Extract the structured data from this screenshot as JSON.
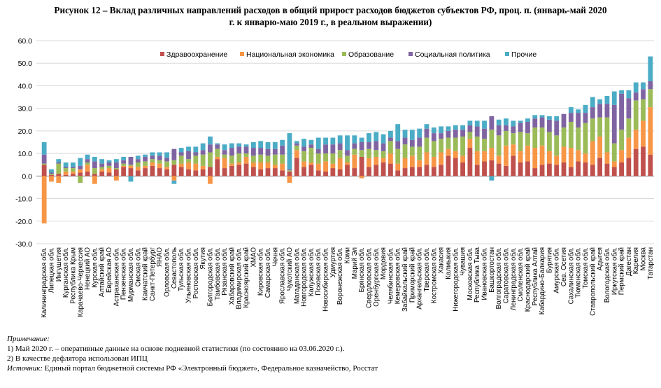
{
  "title": {
    "line1": "Рисунок 12 – Вклад различных направлений расходов в общий прирост расходов бюджетов субъектов РФ, проц. п. (январь-май 2020",
    "line2": "г. к январю-маю 2019 г., в реальном выражении)"
  },
  "notes": {
    "heading": "Примечание:",
    "line1": "1) Май 2020 г. – оперативные данные на основе подневной статистики (по состоянию на 03.06.2020 г.).",
    "line2": "2) В качестве дефлятора использован ИПЦ",
    "source_label": "Источник:",
    "source_text": " Единый портал бюджетной системы РФ «Электронный бюджет», Федеральное казначейство, Росстат"
  },
  "colors": {
    "Здравоохранение": "#c0504d",
    "Национальная экономика": "#f79646",
    "Образование": "#9bbb59",
    "Социальная политика": "#8064a2",
    "Прочие": "#4bacc6"
  },
  "chart_data": {
    "type": "bar",
    "stacked": true,
    "ylim": [
      -30,
      60
    ],
    "yticks": [
      "-30.0",
      "-20.0",
      "-10.0",
      "0.0",
      "10.0",
      "20.0",
      "30.0",
      "40.0",
      "50.0",
      "60.0"
    ],
    "grid": true,
    "legend_position": "top",
    "categories": [
      "Калининградская обл.",
      "Липецкая обл.",
      "Ингушетия",
      "Курганская обл.",
      "Республика Крым",
      "Карачаево-Черкессия",
      "Ненецкий АО",
      "Курская обл.",
      "Алтайский край",
      "Еврейская АО",
      "Астраханская обл.",
      "Пензенская обл.",
      "Мурманская обл.",
      "Омская обл.",
      "Камчатский край",
      "Санкт-Петербург",
      "ЯНАО",
      "Орловская обл.",
      "Севастополь",
      "Тульская обл.",
      "Ульяновская обл.",
      "Ростовская обл.",
      "Якутия",
      "Белгородская обл.",
      "Тамбовская обл.",
      "Рязанская обл.",
      "Хабаровский край",
      "Владимирская обл.",
      "Красноярский край",
      "ХМАО",
      "Кировская обл.",
      "Самарская обл.",
      "Чечня",
      "Ярославская обл.",
      "Чукотский АО",
      "Магаданская обл.",
      "Новгородская обл.",
      "Калужская обл.",
      "Псковская обл.",
      "Новосибирская обл.",
      "Удмуртия",
      "Воронежская обл.",
      "Коми",
      "Марий Эл",
      "Брянская обл.",
      "Свердловская обл.",
      "Оренбургская обл.",
      "Мордовия",
      "Челябинская обл.",
      "Кемеровская обл.",
      "Забайкальский край",
      "Приморский край",
      "Архангельская обл.",
      "Тверская обл.",
      "Костромская обл.",
      "Хакасия",
      "Калмыкия",
      "Нижегородская обл.",
      "Чувашия",
      "Московская обл.",
      "Республика Тыва",
      "Ивановская обл.",
      "Башкортостан",
      "Волгоградская обл.",
      "Саратовская обл.",
      "Ленинградская обл.",
      "Смоленская обл.",
      "Краснодарский край",
      "Республика Алтай",
      "Кабардино-Балкария",
      "Бурятия",
      "Амурская обл.",
      "Сев. Осетия",
      "Сахалинская обл.",
      "Тюменская обл.",
      "Томская обл.",
      "Ставропольский край",
      "Адыгея",
      "Вологодская обл.",
      "Иркутская обл.",
      "Пермский край",
      "Дагестан",
      "Карелия",
      "Москва",
      "Татарстан"
    ],
    "series": [
      {
        "name": "Здравоохранение",
        "values": [
          5,
          0.5,
          1,
          0.5,
          1,
          1.5,
          2,
          1,
          2,
          1.5,
          3,
          4,
          3.5,
          2.5,
          3.5,
          4.5,
          3.5,
          3,
          5,
          4,
          3,
          2.5,
          3,
          4,
          7.5,
          3.5,
          4.5,
          5,
          5.5,
          4,
          3,
          3.5,
          3.5,
          2.5,
          2,
          8,
          4,
          5,
          2.5,
          2,
          3.5,
          3,
          5,
          3.5,
          8.5,
          4,
          5,
          6,
          5.5,
          2.5,
          3.5,
          4,
          4,
          5,
          4,
          5,
          9,
          8,
          6,
          12.5,
          5,
          6.5,
          7,
          5.5,
          4.5,
          9,
          6,
          6.5,
          3.5,
          5,
          5.5,
          5,
          6,
          4,
          6.5,
          6,
          5,
          8,
          5.5,
          4,
          6,
          8,
          12,
          13,
          9.5
        ]
      },
      {
        "name": "Национальная экономика",
        "values": [
          -21,
          -2.5,
          -3,
          1.5,
          1,
          1.5,
          3,
          -3.5,
          1,
          2,
          -2,
          0.5,
          1,
          1.5,
          1,
          1.5,
          2,
          1,
          -2,
          1.5,
          3,
          3,
          1.5,
          -3.5,
          1,
          4.5,
          1,
          1,
          3,
          2,
          3,
          2.5,
          1.5,
          3,
          -3,
          3.5,
          2.5,
          1,
          3,
          4.5,
          2,
          5,
          1,
          6,
          -1,
          4,
          3.5,
          2,
          4.5,
          3,
          4.5,
          5,
          3,
          5.5,
          4.5,
          5.5,
          3,
          3,
          3,
          4,
          6,
          4.5,
          5.5,
          3.5,
          9,
          5,
          5,
          7,
          9,
          8.5,
          5.5,
          4,
          7,
          8.5,
          5,
          4,
          10.5,
          9.5,
          5,
          2.5,
          5.5,
          9,
          8.5,
          11.5,
          21
        ]
      },
      {
        "name": "Образование",
        "values": [
          0.5,
          0.5,
          4.5,
          1.5,
          1.5,
          -3,
          1,
          2.5,
          1,
          1,
          0.5,
          1,
          0.5,
          2,
          2,
          1.5,
          1.5,
          2.5,
          2,
          3.5,
          1.5,
          3.5,
          5,
          6.5,
          3.5,
          1.5,
          3.5,
          4,
          1.5,
          3,
          3.5,
          3,
          4.5,
          4,
          0.5,
          2,
          4.5,
          6.5,
          4.5,
          3.5,
          4.5,
          3.5,
          3,
          2.5,
          3,
          4,
          3,
          3,
          5.5,
          6.5,
          6,
          4,
          6,
          6.5,
          7,
          6,
          5,
          6,
          8.5,
          3,
          6.5,
          5.5,
          8,
          9,
          6.5,
          5,
          8.5,
          5.5,
          9,
          8,
          8.5,
          9,
          8.5,
          11.5,
          10,
          13.5,
          10,
          8.5,
          15.5,
          8,
          9,
          8.5,
          13,
          9.5,
          8
        ]
      },
      {
        "name": "Социальная политика",
        "values": [
          4,
          0.5,
          0.5,
          0.5,
          0.5,
          1.5,
          1.5,
          3,
          1.5,
          1.5,
          2.5,
          1.5,
          3.5,
          1.5,
          2,
          1.5,
          2,
          1.5,
          5,
          1.5,
          3.5,
          1.5,
          2,
          3.5,
          2,
          2,
          3.5,
          3,
          3,
          3.5,
          3,
          3,
          2.5,
          4,
          0.5,
          1,
          2,
          1.5,
          2,
          4,
          4,
          3,
          2.5,
          2.5,
          3.5,
          3,
          4,
          3.5,
          1.5,
          3.5,
          3,
          3,
          4,
          4,
          3.5,
          2.5,
          3,
          3.5,
          3,
          3,
          4.5,
          4.5,
          6,
          4.5,
          2.5,
          3,
          4,
          5,
          4,
          4.5,
          5.5,
          6.5,
          6,
          4,
          6.5,
          4.5,
          5,
          6,
          6,
          17,
          16,
          9,
          3.5,
          4.5,
          3.5
        ]
      },
      {
        "name": "Прочие",
        "values": [
          5.5,
          1.5,
          1.5,
          2,
          2,
          3.5,
          2,
          2,
          2,
          1,
          1.5,
          1.5,
          -2.5,
          1.5,
          1,
          1.5,
          1.5,
          2.5,
          -1.5,
          2,
          2,
          2.5,
          3,
          3.5,
          0.5,
          2.5,
          2,
          1.5,
          1,
          2.5,
          3,
          3,
          3,
          2.5,
          16,
          1,
          3.5,
          2,
          5,
          3,
          3,
          3.5,
          6.5,
          3.5,
          2,
          4,
          4,
          4,
          3,
          7.5,
          3.5,
          4.5,
          4,
          2,
          2.5,
          3,
          2,
          2,
          2,
          2,
          2.5,
          3.5,
          -2,
          2.5,
          3,
          2.5,
          1,
          1.5,
          1.5,
          1,
          1.5,
          2,
          0,
          2.5,
          1.5,
          3.5,
          4.5,
          2,
          3.5,
          6,
          1.5,
          3.5,
          4.5,
          3,
          11
        ]
      }
    ]
  }
}
